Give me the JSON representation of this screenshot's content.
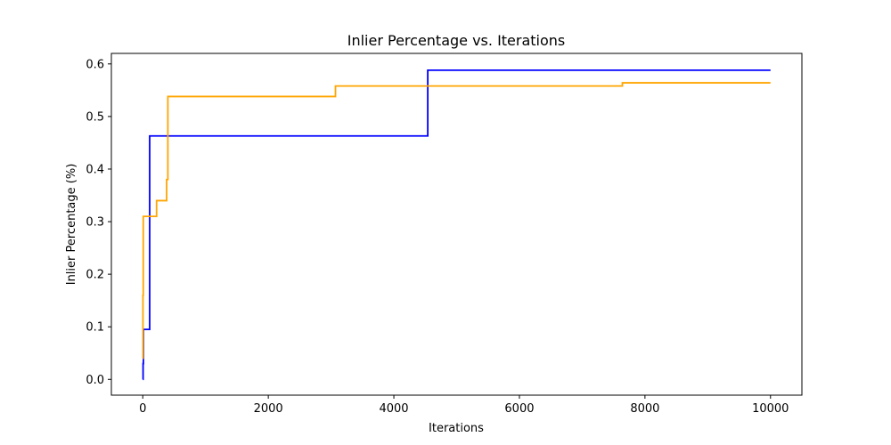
{
  "chart_data": {
    "type": "line",
    "title": "Inlier Percentage vs. Iterations",
    "xlabel": "Iterations",
    "ylabel": "Inlier Percentage (%)",
    "xlim": [
      -500,
      10500
    ],
    "ylim": [
      -0.03,
      0.62
    ],
    "xticks": [
      0,
      2000,
      4000,
      6000,
      8000,
      10000
    ],
    "xtick_labels": [
      "0",
      "2000",
      "4000",
      "6000",
      "8000",
      "10000"
    ],
    "yticks": [
      0.0,
      0.1,
      0.2,
      0.3,
      0.4,
      0.5,
      0.6
    ],
    "ytick_labels": [
      "0.0",
      "0.1",
      "0.2",
      "0.3",
      "0.4",
      "0.5",
      "0.6"
    ],
    "grid": false,
    "step": true,
    "series": [
      {
        "color": "#0000ff",
        "x": [
          0,
          5,
          10,
          110,
          4540,
          10000
        ],
        "y": [
          0.0,
          0.03,
          0.095,
          0.463,
          0.588,
          0.588
        ]
      },
      {
        "color": "#ffa500",
        "x": [
          0,
          3,
          8,
          220,
          380,
          400,
          3070,
          7640,
          10000
        ],
        "y": [
          0.04,
          0.16,
          0.31,
          0.34,
          0.38,
          0.538,
          0.558,
          0.564,
          0.564
        ]
      }
    ]
  }
}
